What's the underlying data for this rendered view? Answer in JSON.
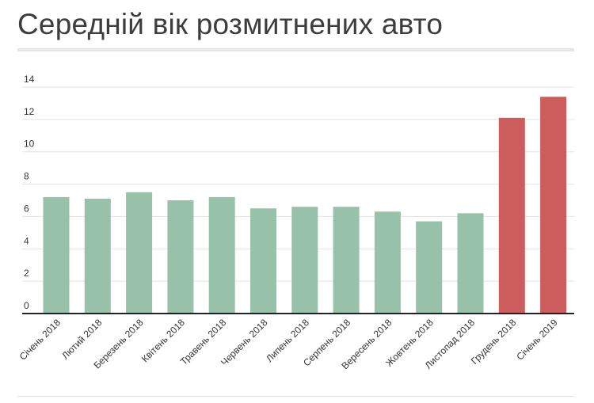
{
  "title": "Середній вік розмитнених авто",
  "colors": {
    "normal_bar": "#98c1a9",
    "highlight_bar": "#cd5c5c",
    "grid": "#e3e3e3",
    "axis": "#222222"
  },
  "chart_data": {
    "type": "bar",
    "title": "Середній вік розмитнених авто",
    "xlabel": "",
    "ylabel": "",
    "ylim": [
      0,
      14
    ],
    "yticks": [
      0,
      2,
      4,
      6,
      8,
      10,
      12,
      14
    ],
    "grid": true,
    "categories": [
      "Січень 2018",
      "Лютий 2018",
      "Березень 2018",
      "Квітень 2018",
      "Травень 2018",
      "Червень 2018",
      "Липень 2018",
      "Серпень 2018",
      "Вересень 2018",
      "Жовтень 2018",
      "Листопад 2018",
      "Грудень 2018",
      "Січень 2019"
    ],
    "values": [
      7.2,
      7.1,
      7.5,
      7.0,
      7.2,
      6.5,
      6.6,
      6.6,
      6.3,
      5.7,
      6.2,
      12.1,
      13.4
    ],
    "highlight": [
      false,
      false,
      false,
      false,
      false,
      false,
      false,
      false,
      false,
      false,
      false,
      true,
      true
    ]
  }
}
